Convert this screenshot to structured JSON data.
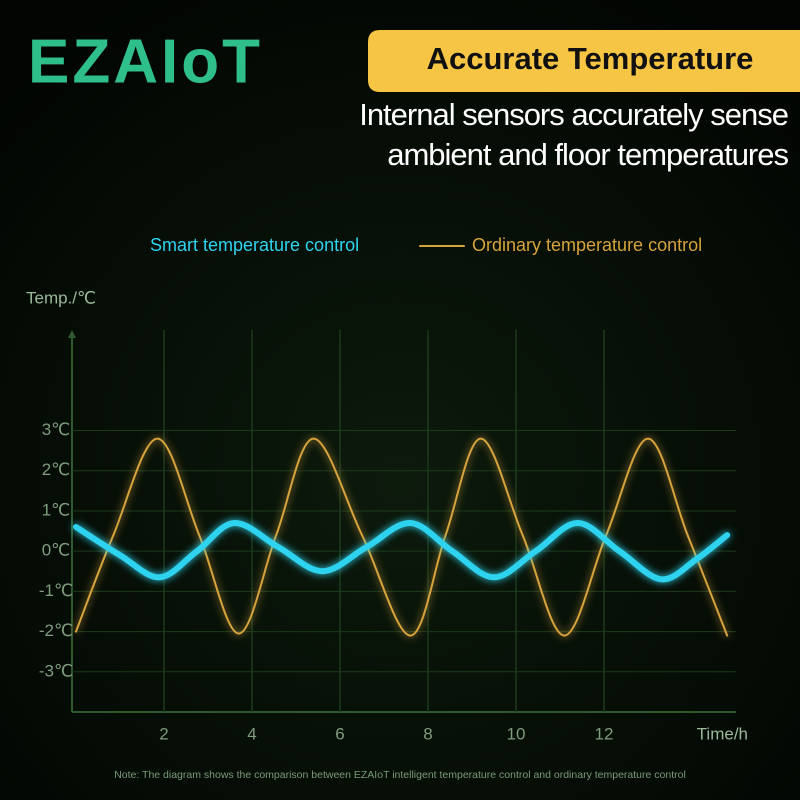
{
  "logo": "EZAIoT",
  "badge": "Accurate Temperature",
  "subtitle": [
    "Internal sensors accurately sense",
    "ambient and floor temperatures"
  ],
  "note": "Note: The diagram shows the comparison between EZAIoT intelligent temperature control and ordinary temperature control",
  "chart_data": {
    "type": "line",
    "y_label": "Temp./℃",
    "x_label": "Time/h",
    "xlim": [
      0,
      15
    ],
    "ylim": [
      -4,
      5.5
    ],
    "xticks": [
      2,
      4,
      6,
      8,
      10,
      12
    ],
    "yticks": [
      {
        "value": 3,
        "label": "3℃"
      },
      {
        "value": 2,
        "label": "2℃"
      },
      {
        "value": 1,
        "label": "1℃"
      },
      {
        "value": 0,
        "label": "0℃"
      },
      {
        "value": -1,
        "label": "-1℃"
      },
      {
        "value": -2,
        "label": "-2℃"
      },
      {
        "value": -3,
        "label": "-3℃"
      }
    ],
    "grid": true,
    "legend": "top",
    "series": [
      {
        "name": "Smart temperature control",
        "color": "#2fd3ef",
        "width": 6,
        "x": [
          0,
          1,
          1.9,
          2.75,
          3.6,
          4.6,
          5.6,
          6.6,
          7.6,
          8.55,
          9.5,
          10.45,
          11.4,
          12.35,
          13.3,
          14.1,
          14.8
        ],
        "values": [
          0.6,
          -0.1,
          -0.65,
          0.0,
          0.7,
          0.1,
          -0.5,
          0.1,
          0.7,
          0.0,
          -0.65,
          0.0,
          0.7,
          0.0,
          -0.7,
          -0.2,
          0.4
        ]
      },
      {
        "name": "Ordinary temperature control",
        "color": "#d6a33c",
        "width": 2,
        "x": [
          0,
          0.85,
          1.85,
          2.8,
          3.7,
          4.55,
          5.4,
          6.5,
          7.6,
          8.4,
          9.2,
          10.15,
          11.1,
          12.05,
          13.0,
          13.9,
          14.8
        ],
        "values": [
          -2,
          0.4,
          2.8,
          0.4,
          -2.05,
          0.4,
          2.8,
          0.4,
          -2.1,
          0.4,
          2.8,
          0.4,
          -2.1,
          0.4,
          2.8,
          0.4,
          -2.1
        ]
      }
    ]
  }
}
